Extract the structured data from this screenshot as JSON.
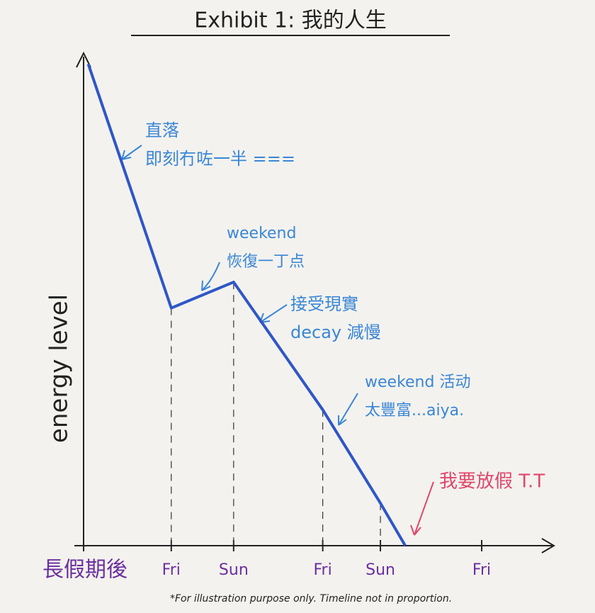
{
  "chart_data": {
    "type": "line",
    "title": "Exhibit 1: 我的人生",
    "y_label": "energy level",
    "xlim": [
      0,
      100
    ],
    "ylim": [
      0,
      100
    ],
    "xticks": [
      {
        "value": 0,
        "label": "長假期後"
      },
      {
        "value": 18.7,
        "label": "Fri"
      },
      {
        "value": 32,
        "label": "Sun"
      },
      {
        "value": 51,
        "label": "Fri"
      },
      {
        "value": 63.3,
        "label": "Sun"
      },
      {
        "value": 84.9,
        "label": "Fri"
      }
    ],
    "series": [
      {
        "color": "#2f56c8",
        "x": [
          1,
          18.7,
          32,
          51,
          63.3,
          68.6
        ],
        "values": [
          98.5,
          48.6,
          53.9,
          27.8,
          8.7,
          0
        ]
      }
    ],
    "annotations": [
      {
        "lines": [
          "直落",
          "即刻冇咗一半 ==="
        ],
        "color": "#3a86d6"
      },
      {
        "lines": [
          "weekend",
          "恢復一丁点"
        ],
        "color": "#3a86d6"
      },
      {
        "lines": [
          "接受現實",
          "decay 減慢"
        ],
        "color": "#3a86d6"
      },
      {
        "lines": [
          "weekend 活动",
          "太豐富...aiya."
        ],
        "color": "#3a86d6"
      },
      {
        "lines": [
          "我要放假 T.T"
        ],
        "color": "#e0476a"
      }
    ],
    "footnote": "*For illustration purpose only. Timeline not in proportion."
  }
}
